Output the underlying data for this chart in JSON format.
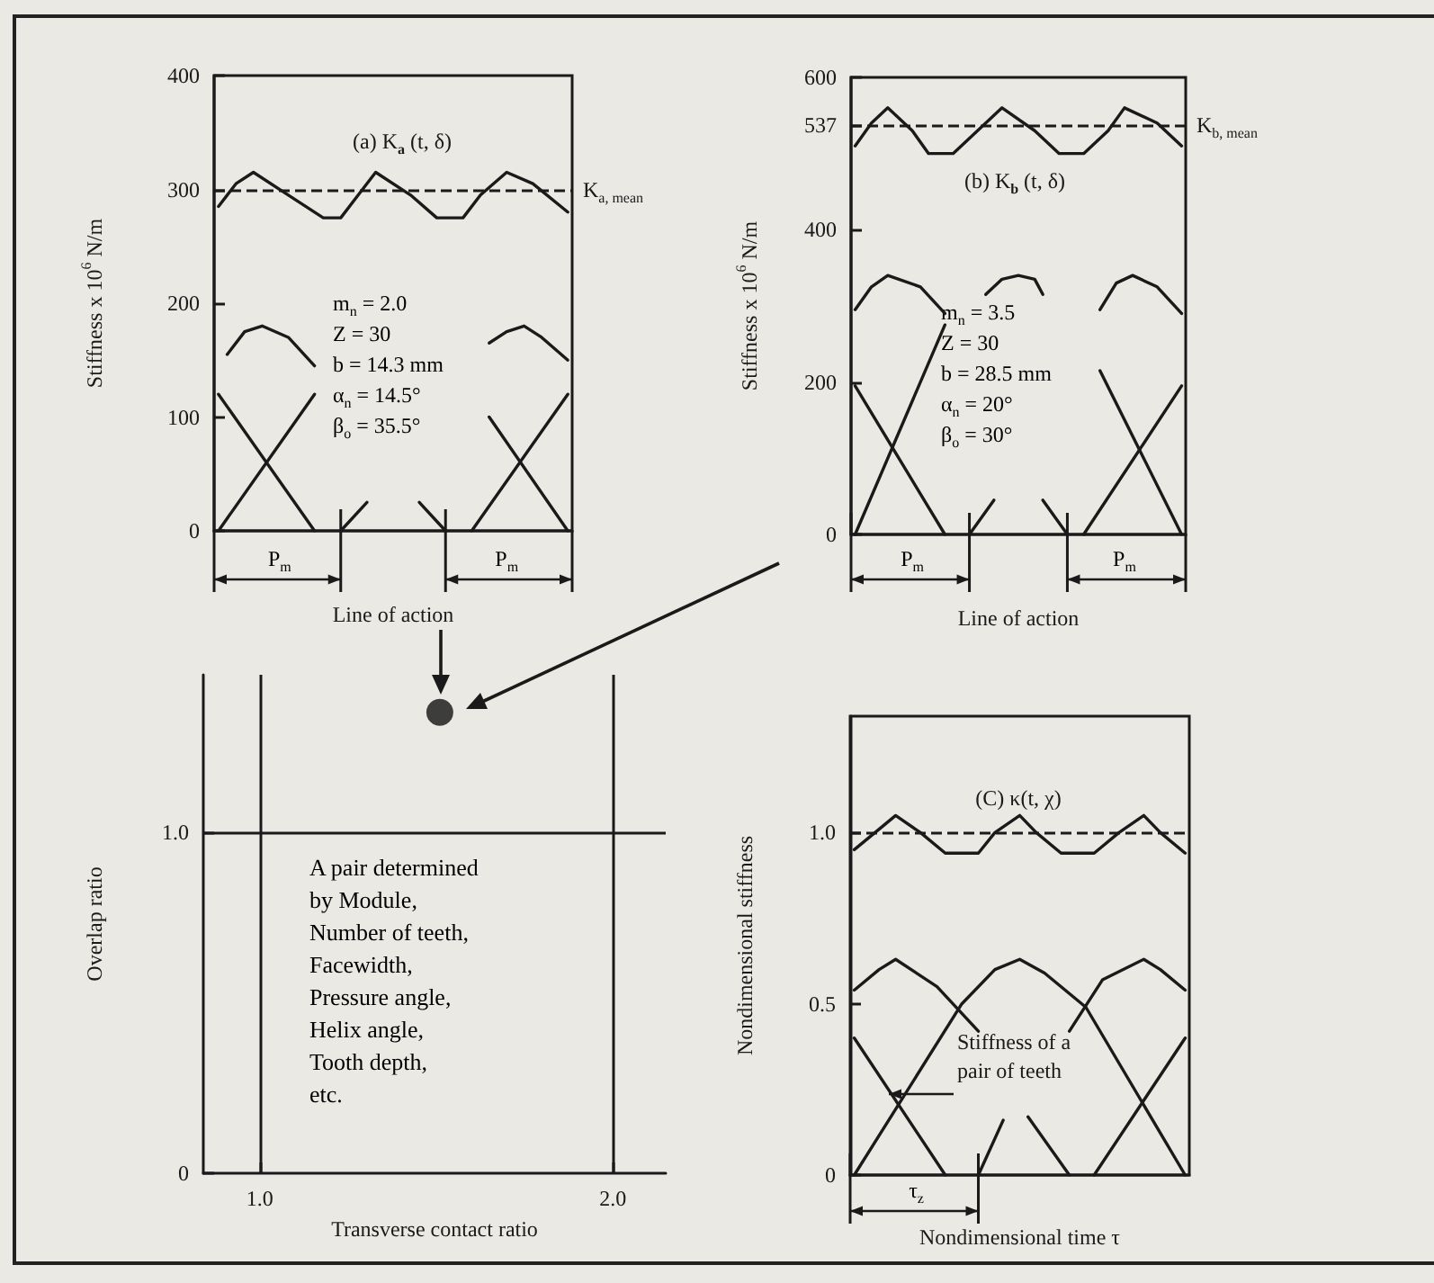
{
  "chart_data": [
    {
      "type": "line",
      "title": "(a) K$_{a}$ (t, δ)",
      "xlabel": "Line of action",
      "ylabel": "Stiffness x 10$^{6}$ N/m",
      "categories": [
        null,
        null,
        null,
        null,
        null,
        null,
        null,
        null,
        null,
        null,
        null,
        null,
        null,
        null,
        null,
        null,
        null,
        null,
        null,
        null,
        null,
        null,
        null,
        null,
        null,
        null,
        null,
        null,
        null,
        null,
        null,
        null,
        null,
        null,
        null,
        null,
        null,
        null,
        null,
        null,
        null
      ],
      "ylim": [
        0,
        400
      ],
      "yticks": [
        0,
        100,
        200,
        300,
        400
      ],
      "tick_labels": "y",
      "marker": "none",
      "line_style": "solid",
      "series": [
        {
          "color": "#1a1a1a",
          "values": [
            285,
            null,
            305,
            null,
            315,
            null,
            null,
            null,
            295,
            null,
            null,
            null,
            275,
            null,
            275,
            null,
            295,
            null,
            315,
            null,
            null,
            null,
            295,
            null,
            null,
            275,
            null,
            null,
            275,
            null,
            295,
            null,
            null,
            315,
            null,
            null,
            305,
            null,
            null,
            null,
            280
          ]
        },
        {
          "color": "#1a1a1a",
          "values": [
            null,
            155,
            null,
            175,
            null,
            180,
            null,
            null,
            170,
            null,
            null,
            145,
            null,
            null,
            null,
            null,
            null,
            null,
            null,
            null,
            null,
            null,
            null,
            null,
            null,
            null,
            null,
            null,
            null,
            null,
            null,
            null,
            null,
            null,
            null,
            null,
            null,
            null,
            null,
            null,
            null
          ]
        },
        {
          "color": "#1a1a1a",
          "values": [
            null,
            null,
            null,
            null,
            null,
            null,
            null,
            null,
            null,
            null,
            null,
            null,
            null,
            null,
            null,
            null,
            null,
            null,
            null,
            null,
            null,
            null,
            null,
            null,
            null,
            null,
            null,
            null,
            null,
            null,
            null,
            165,
            null,
            175,
            null,
            180,
            null,
            170,
            null,
            null,
            150
          ]
        },
        {
          "color": "#1a1a1a",
          "values": [
            0,
            null,
            null,
            null,
            null,
            null,
            null,
            null,
            null,
            null,
            null,
            120,
            null,
            null,
            null,
            null,
            null,
            null,
            null,
            null,
            null,
            null,
            null,
            null,
            null,
            null,
            null,
            null,
            null,
            null,
            null,
            null,
            null,
            null,
            null,
            null,
            null,
            null,
            null,
            null,
            null
          ]
        },
        {
          "color": "#1a1a1a",
          "values": [
            120,
            null,
            null,
            null,
            null,
            null,
            null,
            null,
            null,
            null,
            null,
            0,
            null,
            null,
            null,
            null,
            null,
            null,
            null,
            null,
            null,
            null,
            null,
            null,
            null,
            null,
            null,
            null,
            null,
            null,
            null,
            null,
            null,
            null,
            null,
            null,
            null,
            null,
            null,
            null,
            null
          ]
        },
        {
          "color": "#1a1a1a",
          "values": [
            null,
            null,
            null,
            null,
            null,
            null,
            null,
            null,
            null,
            null,
            null,
            null,
            null,
            null,
            0,
            null,
            null,
            25,
            null,
            null,
            null,
            null,
            null,
            null,
            null,
            null,
            null,
            null,
            null,
            null,
            null,
            null,
            null,
            null,
            null,
            null,
            null,
            null,
            null,
            null,
            null
          ]
        },
        {
          "color": "#1a1a1a",
          "values": [
            null,
            null,
            null,
            null,
            null,
            null,
            null,
            null,
            null,
            null,
            null,
            null,
            null,
            null,
            null,
            null,
            null,
            null,
            null,
            null,
            null,
            null,
            null,
            25,
            null,
            null,
            0,
            null,
            null,
            null,
            null,
            null,
            null,
            null,
            null,
            null,
            null,
            null,
            null,
            null,
            null
          ]
        },
        {
          "color": "#1a1a1a",
          "values": [
            null,
            null,
            null,
            null,
            null,
            null,
            null,
            null,
            null,
            null,
            null,
            null,
            null,
            null,
            null,
            null,
            null,
            null,
            null,
            null,
            null,
            null,
            null,
            null,
            null,
            null,
            null,
            null,
            null,
            0,
            null,
            null,
            null,
            null,
            null,
            null,
            null,
            null,
            null,
            null,
            120
          ]
        },
        {
          "color": "#1a1a1a",
          "values": [
            null,
            null,
            null,
            null,
            null,
            null,
            null,
            null,
            null,
            null,
            null,
            null,
            null,
            null,
            null,
            null,
            null,
            null,
            null,
            null,
            null,
            null,
            null,
            null,
            null,
            null,
            null,
            null,
            null,
            null,
            null,
            100,
            null,
            null,
            null,
            null,
            null,
            null,
            null,
            null,
            0
          ]
        }
      ],
      "ref_lines": [
        {
          "axis": "y",
          "value": 300,
          "label": "K$_{a, mean}$",
          "line_style": "dashed"
        }
      ],
      "annotations": [
        "m$_{n}$ = 2.0\nZ = 30\nb = 14.3 mm\nα$_{n}$ = 14.5°\nβ$_{o}$ = 35.5°",
        "P$_{m}$",
        "P$_{m}$"
      ]
    },
    {
      "type": "line",
      "title": "(b) K$_{b}$ (t, δ)",
      "xlabel": "Line of action",
      "ylabel": "Stiffness x 10$^{6}$ N/m",
      "categories": [
        null,
        null,
        null,
        null,
        null,
        null,
        null,
        null,
        null,
        null,
        null,
        null,
        null,
        null,
        null,
        null,
        null,
        null,
        null,
        null,
        null,
        null,
        null,
        null,
        null,
        null,
        null,
        null,
        null,
        null,
        null,
        null,
        null,
        null,
        null,
        null,
        null,
        null,
        null,
        null,
        null
      ],
      "ylim": [
        0,
        600
      ],
      "yticks": [
        0,
        200,
        400,
        537,
        600
      ],
      "tick_labels": "y",
      "marker": "none",
      "line_style": "solid",
      "series": [
        {
          "color": "#1a1a1a",
          "values": [
            510,
            null,
            540,
            null,
            560,
            null,
            null,
            530,
            null,
            500,
            null,
            null,
            500,
            null,
            null,
            530,
            null,
            null,
            560,
            null,
            null,
            null,
            530,
            null,
            null,
            500,
            null,
            null,
            500,
            null,
            null,
            530,
            null,
            560,
            null,
            null,
            null,
            540,
            null,
            null,
            510
          ]
        },
        {
          "color": "#1a1a1a",
          "values": [
            295,
            null,
            325,
            null,
            340,
            null,
            null,
            null,
            325,
            null,
            null,
            290,
            null,
            null,
            null,
            null,
            null,
            null,
            null,
            null,
            null,
            null,
            null,
            null,
            null,
            null,
            null,
            null,
            null,
            null,
            null,
            null,
            null,
            null,
            null,
            null,
            null,
            null,
            null,
            null,
            null
          ]
        },
        {
          "color": "#1a1a1a",
          "values": [
            null,
            null,
            null,
            null,
            null,
            null,
            null,
            null,
            null,
            null,
            null,
            null,
            null,
            null,
            null,
            null,
            315,
            null,
            335,
            null,
            340,
            null,
            335,
            315,
            null,
            null,
            null,
            null,
            null,
            null,
            null,
            null,
            null,
            null,
            null,
            null,
            null,
            null,
            null,
            null,
            null
          ]
        },
        {
          "color": "#1a1a1a",
          "values": [
            null,
            null,
            null,
            null,
            null,
            null,
            null,
            null,
            null,
            null,
            null,
            null,
            null,
            null,
            null,
            null,
            null,
            null,
            null,
            null,
            null,
            null,
            null,
            null,
            null,
            null,
            null,
            null,
            null,
            null,
            295,
            null,
            330,
            null,
            340,
            null,
            null,
            325,
            null,
            null,
            290
          ]
        },
        {
          "color": "#1a1a1a",
          "values": [
            0,
            null,
            null,
            null,
            null,
            null,
            null,
            null,
            null,
            null,
            null,
            275,
            null,
            null,
            null,
            null,
            null,
            null,
            null,
            null,
            null,
            null,
            null,
            null,
            null,
            null,
            null,
            null,
            null,
            null,
            null,
            null,
            null,
            null,
            null,
            null,
            null,
            null,
            null,
            null,
            null
          ]
        },
        {
          "color": "#1a1a1a",
          "values": [
            195,
            null,
            null,
            null,
            null,
            null,
            null,
            null,
            null,
            null,
            null,
            0,
            null,
            null,
            null,
            null,
            null,
            null,
            null,
            null,
            null,
            null,
            null,
            null,
            null,
            null,
            null,
            null,
            null,
            null,
            null,
            null,
            null,
            null,
            null,
            null,
            null,
            null,
            null,
            null,
            null
          ]
        },
        {
          "color": "#1a1a1a",
          "values": [
            null,
            null,
            null,
            null,
            null,
            null,
            null,
            null,
            null,
            null,
            null,
            null,
            null,
            null,
            0,
            null,
            null,
            45,
            null,
            null,
            null,
            null,
            null,
            null,
            null,
            null,
            null,
            null,
            null,
            null,
            null,
            null,
            null,
            null,
            null,
            null,
            null,
            null,
            null,
            null,
            null
          ]
        },
        {
          "color": "#1a1a1a",
          "values": [
            null,
            null,
            null,
            null,
            null,
            null,
            null,
            null,
            null,
            null,
            null,
            null,
            null,
            null,
            null,
            null,
            null,
            null,
            null,
            null,
            null,
            null,
            null,
            45,
            null,
            null,
            0,
            null,
            null,
            null,
            null,
            null,
            null,
            null,
            null,
            null,
            null,
            null,
            null,
            null,
            null
          ]
        },
        {
          "color": "#1a1a1a",
          "values": [
            null,
            null,
            null,
            null,
            null,
            null,
            null,
            null,
            null,
            null,
            null,
            null,
            null,
            null,
            null,
            null,
            null,
            null,
            null,
            null,
            null,
            null,
            null,
            null,
            null,
            null,
            null,
            null,
            0,
            null,
            null,
            null,
            null,
            null,
            null,
            null,
            null,
            null,
            null,
            null,
            195
          ]
        },
        {
          "color": "#1a1a1a",
          "values": [
            null,
            null,
            null,
            null,
            null,
            null,
            null,
            null,
            null,
            null,
            null,
            null,
            null,
            null,
            null,
            null,
            null,
            null,
            null,
            null,
            null,
            null,
            null,
            null,
            null,
            null,
            null,
            null,
            null,
            null,
            215,
            null,
            null,
            null,
            null,
            null,
            null,
            null,
            null,
            null,
            0
          ]
        }
      ],
      "ref_lines": [
        {
          "axis": "y",
          "value": 537,
          "label": "K$_{b, mean}$",
          "line_style": "dashed"
        }
      ],
      "annotations": [
        "m$_{n}$ = 3.5\nZ = 30\nb = 28.5 mm\nα$_{n}$ = 20°\nβ$_{o}$ = 30°",
        "P$_{m}$",
        "P$_{m}$"
      ]
    },
    {
      "type": "scatter",
      "xlabel": "Transverse contact ratio",
      "ylabel": "Overlap ratio",
      "xlim": [
        0.84,
        2.15
      ],
      "ylim": [
        0,
        1.46
      ],
      "xticks": [
        {
          "value": 1,
          "label": "1.0"
        },
        {
          "value": 2,
          "label": "2.0"
        }
      ],
      "yticks": [
        0,
        {
          "value": 1,
          "label": "1.0"
        }
      ],
      "marker": "circle",
      "series": [
        {
          "color": "#111111",
          "x": [
            1.51
          ],
          "values": [
            1.35
          ]
        }
      ],
      "ref_lines": [
        {
          "axis": "x",
          "value": 1
        },
        {
          "axis": "x",
          "value": 2
        },
        {
          "axis": "y",
          "value": 1
        }
      ],
      "annotations": [
        "A pair determined\nby Module,\nNumber of teeth,\nFacewidth,\nPressure angle,\nHelix angle,\nTooth depth,\netc."
      ]
    },
    {
      "type": "line",
      "title": "(C) κ(t, χ)",
      "xlabel": "Nondimensional time τ",
      "ylabel": "Nondimensional stiffness",
      "categories": [
        null,
        null,
        null,
        null,
        null,
        null,
        null,
        null,
        null,
        null,
        null,
        null,
        null,
        null,
        null,
        null,
        null,
        null,
        null,
        null,
        null,
        null,
        null,
        null,
        null,
        null,
        null,
        null,
        null,
        null,
        null,
        null,
        null,
        null,
        null,
        null,
        null,
        null,
        null,
        null,
        null
      ],
      "ylim": [
        0,
        1.34
      ],
      "yticks": [
        0,
        0.5,
        {
          "value": 1,
          "label": "1.0"
        }
      ],
      "tick_labels": "y",
      "marker": "none",
      "line_style": "solid",
      "series": [
        {
          "color": "#1a1a1a",
          "values": [
            0.95,
            null,
            null,
            1.01,
            null,
            1.05,
            null,
            null,
            1.0,
            null,
            null,
            0.94,
            null,
            null,
            null,
            0.94,
            null,
            1.0,
            null,
            null,
            1.05,
            null,
            1.0,
            null,
            null,
            0.94,
            null,
            null,
            null,
            0.94,
            null,
            null,
            1.0,
            null,
            null,
            1.05,
            null,
            1.0,
            null,
            null,
            0.94
          ]
        },
        {
          "color": "#1a1a1a",
          "values": [
            0.54,
            null,
            null,
            0.6,
            null,
            0.63,
            null,
            null,
            null,
            null,
            0.55,
            null,
            null,
            null,
            null,
            0.42,
            null,
            null,
            null,
            null,
            null,
            null,
            null,
            null,
            null,
            null,
            null,
            null,
            null,
            null,
            null,
            null,
            null,
            null,
            null,
            null,
            null,
            null,
            null,
            null,
            null
          ]
        },
        {
          "color": "#1a1a1a",
          "values": [
            0.4,
            null,
            null,
            null,
            null,
            null,
            null,
            null,
            null,
            null,
            null,
            0,
            null,
            null,
            null,
            null,
            null,
            null,
            null,
            null,
            null,
            null,
            null,
            null,
            null,
            null,
            null,
            null,
            null,
            null,
            null,
            null,
            null,
            null,
            null,
            null,
            null,
            null,
            null,
            null,
            null
          ]
        },
        {
          "color": "#1a1a1a",
          "values": [
            0,
            null,
            null,
            null,
            null,
            null,
            null,
            null,
            null,
            null,
            null,
            null,
            null,
            0.5,
            null,
            null,
            null,
            0.6,
            null,
            null,
            0.63,
            null,
            null,
            0.59,
            null,
            null,
            null,
            null,
            0.49,
            null,
            null,
            null,
            null,
            null,
            null,
            null,
            null,
            null,
            null,
            null,
            0
          ]
        },
        {
          "color": "#1a1a1a",
          "values": [
            null,
            null,
            null,
            null,
            null,
            null,
            null,
            null,
            null,
            null,
            null,
            null,
            null,
            null,
            null,
            null,
            null,
            null,
            null,
            null,
            null,
            null,
            null,
            null,
            null,
            null,
            0.42,
            null,
            null,
            null,
            0.57,
            null,
            null,
            null,
            null,
            0.63,
            null,
            0.6,
            null,
            null,
            0.54
          ]
        },
        {
          "color": "#1a1a1a",
          "values": [
            null,
            null,
            null,
            null,
            null,
            null,
            null,
            null,
            null,
            null,
            null,
            null,
            null,
            null,
            null,
            null,
            null,
            null,
            null,
            null,
            null,
            null,
            null,
            null,
            null,
            null,
            null,
            null,
            null,
            0,
            null,
            null,
            null,
            null,
            null,
            null,
            null,
            null,
            null,
            null,
            0.4
          ]
        },
        {
          "color": "#1a1a1a",
          "values": [
            null,
            null,
            null,
            null,
            null,
            null,
            null,
            null,
            null,
            null,
            null,
            null,
            null,
            null,
            null,
            0,
            null,
            null,
            0.16,
            null,
            null,
            null,
            null,
            null,
            null,
            null,
            null,
            null,
            null,
            null,
            null,
            null,
            null,
            null,
            null,
            null,
            null,
            null,
            null,
            null,
            null
          ]
        },
        {
          "color": "#1a1a1a",
          "values": [
            null,
            null,
            null,
            null,
            null,
            null,
            null,
            null,
            null,
            null,
            null,
            null,
            null,
            null,
            null,
            null,
            null,
            null,
            null,
            null,
            null,
            0.17,
            null,
            null,
            null,
            null,
            0,
            null,
            null,
            null,
            null,
            null,
            null,
            null,
            null,
            null,
            null,
            null,
            null,
            null,
            null
          ]
        }
      ],
      "ref_lines": [
        {
          "axis": "y",
          "value": 1,
          "line_style": "dashed"
        }
      ],
      "annotations": [
        "Stiffness of a pair of teeth",
        "τ$_{z}$"
      ]
    }
  ]
}
